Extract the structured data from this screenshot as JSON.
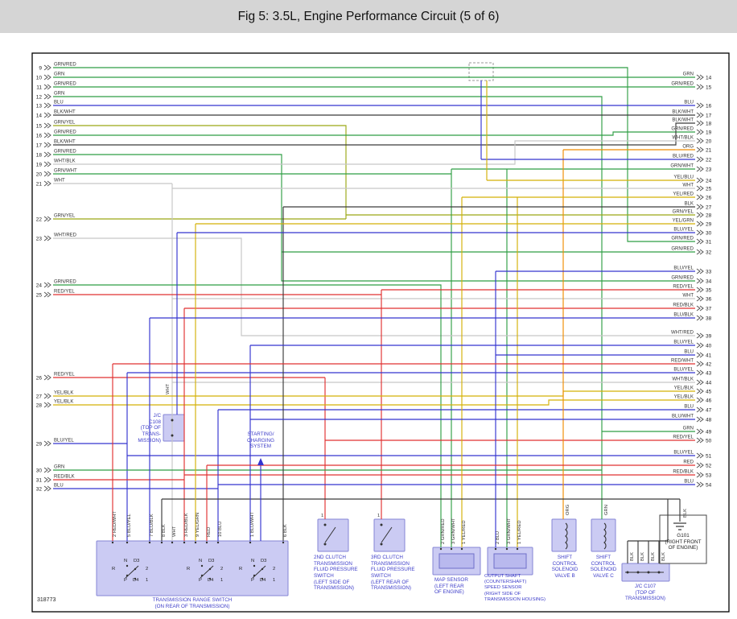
{
  "title": "Fig 5: 3.5L, Engine Performance Circuit (5 of 6)",
  "drawing_number": "318773",
  "colors": {
    "GRN": "#2f9e44",
    "RED": "#e03131",
    "BLU": "#3434cf",
    "BLK": "#3a3a3a",
    "WHT": "#c6c6c6",
    "YEL": "#d4b106",
    "ORG": "#f08c00",
    "GRN/YEL": "#9aa814"
  },
  "left_connector": {
    "rows": [
      {
        "pin": "9",
        "label": "GRN/RED"
      },
      {
        "pin": "10",
        "label": "GRN"
      },
      {
        "pin": "11",
        "label": "GRN/RED"
      },
      {
        "pin": "12",
        "label": "GRN"
      },
      {
        "pin": "13",
        "label": "BLU"
      },
      {
        "pin": "14",
        "label": "BLK/WHT"
      },
      {
        "pin": "15",
        "label": "GRN/YEL"
      },
      {
        "pin": "16",
        "label": "GRN/RED"
      },
      {
        "pin": "17",
        "label": "BLK/WHT"
      },
      {
        "pin": "18",
        "label": "GRN/RED"
      },
      {
        "pin": "19",
        "label": "WHT/BLK"
      },
      {
        "pin": "20",
        "label": "GRN/WHT"
      },
      {
        "pin": "21",
        "label": "WHT"
      },
      {
        "pin": "22",
        "label": "GRN/YEL"
      },
      {
        "pin": "23",
        "label": "WHT/RED"
      },
      {
        "pin": "24",
        "label": "GRN/RED"
      },
      {
        "pin": "25",
        "label": "RED/YEL"
      },
      {
        "pin": "26",
        "label": "RED/YEL"
      },
      {
        "pin": "27",
        "label": "YEL/BLK"
      },
      {
        "pin": "28",
        "label": "YEL/BLK"
      },
      {
        "pin": "29",
        "label": "BLU/YEL"
      },
      {
        "pin": "30",
        "label": "GRN"
      },
      {
        "pin": "31",
        "label": "RED/BLK"
      },
      {
        "pin": "32",
        "label": "BLU"
      }
    ]
  },
  "right_connector": {
    "rows": [
      {
        "pin": "14",
        "label": "GRN"
      },
      {
        "pin": "15",
        "label": "GRN/RED"
      },
      {
        "pin": "16",
        "label": "BLU"
      },
      {
        "pin": "17",
        "label": "BLK/WHT"
      },
      {
        "pin": "18",
        "label": "BLK/WHT"
      },
      {
        "pin": "19",
        "label": "GRN/RED"
      },
      {
        "pin": "20",
        "label": "WHT/BLK"
      },
      {
        "pin": "21",
        "label": "ORG"
      },
      {
        "pin": "22",
        "label": "BLU/RED"
      },
      {
        "pin": "23",
        "label": "GRN/WHT"
      },
      {
        "pin": "24",
        "label": "YEL/BLU"
      },
      {
        "pin": "25",
        "label": "WHT"
      },
      {
        "pin": "26",
        "label": "YEL/RED"
      },
      {
        "pin": "27",
        "label": "BLK"
      },
      {
        "pin": "28",
        "label": "GRN/YEL"
      },
      {
        "pin": "29",
        "label": "YEL/GRN"
      },
      {
        "pin": "30",
        "label": "BLU/YEL"
      },
      {
        "pin": "31",
        "label": "GRN/RED"
      },
      {
        "pin": "32",
        "label": "GRN/RED"
      },
      {
        "pin": "33",
        "label": "BLU/YEL"
      },
      {
        "pin": "34",
        "label": "GRN/RED"
      },
      {
        "pin": "35",
        "label": "RED/YEL"
      },
      {
        "pin": "36",
        "label": "WHT"
      },
      {
        "pin": "37",
        "label": "RED/BLK"
      },
      {
        "pin": "38",
        "label": "BLU/BLK"
      },
      {
        "pin": "39",
        "label": "WHT/RED"
      },
      {
        "pin": "40",
        "label": "BLU/YEL"
      },
      {
        "pin": "41",
        "label": "BLU"
      },
      {
        "pin": "42",
        "label": "RED/WHT"
      },
      {
        "pin": "43",
        "label": "BLU/YEL"
      },
      {
        "pin": "44",
        "label": "WHT/BLK"
      },
      {
        "pin": "45",
        "label": "YEL/BLK"
      },
      {
        "pin": "46",
        "label": "YEL/BLK"
      },
      {
        "pin": "47",
        "label": "BLU"
      },
      {
        "pin": "48",
        "label": "BLU/WHT"
      },
      {
        "pin": "49",
        "label": "GRN"
      },
      {
        "pin": "50",
        "label": "RED/YEL"
      },
      {
        "pin": "51",
        "label": "BLU/YEL"
      },
      {
        "pin": "52",
        "label": "RED"
      },
      {
        "pin": "53",
        "label": "RED/BLK"
      },
      {
        "pin": "54",
        "label": "BLU"
      }
    ]
  },
  "components": {
    "transmission_range_switch": {
      "label": "TRANSMISSION RANGE SWITCH\n(ON REAR OF TRANSMISSION)",
      "pin_labels": [
        "2 RED/WHT",
        "5 BLU/YEL",
        "7 BLU/BLK",
        "8 BLK",
        "WHT",
        "3 RED/BLK",
        "9 YEL/GRN",
        "RED",
        "10 BLU",
        "1 BLU/WHT",
        "6 BLK"
      ],
      "positions": [
        "N",
        "D3",
        "R",
        "2",
        "P",
        "1",
        "D4"
      ]
    },
    "clutch_2nd": {
      "label": "2ND CLUTCH\nTRANSMISSION\nFLUID PRESSURE\nSWITCH\n(LEFT SIDE OF\nTRANSMISSION)",
      "pin": "1"
    },
    "clutch_3rd": {
      "label": "3RD CLUTCH\nTRANSMISSION\nFLUID PRESSURE\nSWITCH\n(LEFT REAR OF\nTRANSMISSION)",
      "pin": "1"
    },
    "map_sensor": {
      "label": "MAP SENSOR\n(LEFT REAR\nOF ENGINE)",
      "pin_labels": [
        "2 GRN/RED",
        "3 GRN/WHT",
        "1 YEL/RED"
      ]
    },
    "output_shaft_sensor": {
      "label": "OUTPUT SHAFT\n(COUNTERSHAFT)\nSPEED SENSOR\n(RIGHT SIDE OF\nTRANSMISSION HOUSING)",
      "pin_labels": [
        "2 BLU",
        "3 GRN/WHT",
        "1 YEL/RED"
      ]
    },
    "solenoid_b": {
      "label": "SHIFT\nCONTROL\nSOLENOID\nVALVE B",
      "pin_labels": [
        "ORG"
      ]
    },
    "solenoid_c": {
      "label": "SHIFT\nCONTROL\nSOLENOID\nVALVE C",
      "pin_labels": [
        "GRN"
      ]
    },
    "jc_c107": {
      "label": "J/C C107\n(TOP OF\nTRANSMISSION)",
      "pin_labels": [
        "BLK",
        "BLK",
        "BLK",
        "BLK"
      ]
    },
    "jc_c108": {
      "label": "J/C\nC108\n(TOP OF\nTRANS-\nMISSION)",
      "wire_label": "WHT"
    },
    "g101": {
      "label": "G101\n(RIGHT FRONT\nOF ENGINE)",
      "pin_labels": [
        "BLK"
      ]
    },
    "starting_charging": {
      "label": "STARTING/\nCHARGING\nSYSTEM"
    }
  }
}
